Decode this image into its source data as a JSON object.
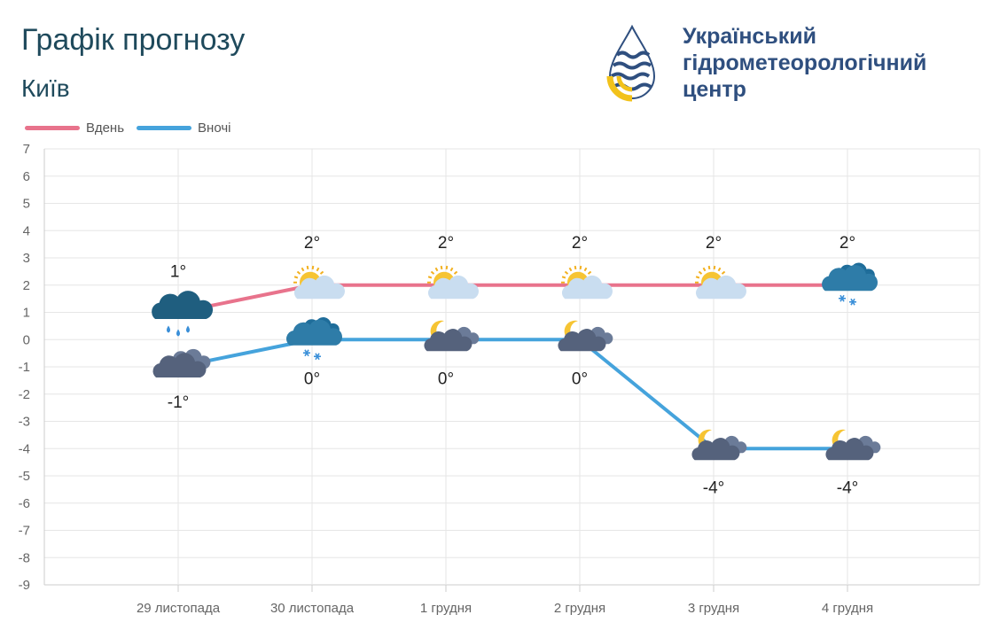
{
  "header": {
    "title": "Графік прогнозу",
    "subtitle": "Київ"
  },
  "org": {
    "line1": "Український",
    "line2": "гідрометеорологічний",
    "line3": "центр"
  },
  "colors": {
    "day": "#e8738c",
    "night": "#45a3dc",
    "grid": "#e6e6e6"
  },
  "chart_data": {
    "type": "line",
    "categories": [
      "29 листопада",
      "30 листопада",
      "1 грудня",
      "2 грудня",
      "3 грудня",
      "4 грудня"
    ],
    "ylim": [
      -9,
      7
    ],
    "yticks": [
      7,
      6,
      5,
      4,
      3,
      2,
      1,
      0,
      -1,
      -2,
      -3,
      -4,
      -5,
      -6,
      -7,
      -8,
      -9
    ],
    "grid": true,
    "legend_position": "top-left",
    "series": [
      {
        "name": "Вдень",
        "values": [
          1,
          2,
          2,
          2,
          2,
          2
        ],
        "labels": [
          "1°",
          "2°",
          "2°",
          "2°",
          "2°",
          "2°"
        ],
        "icons": [
          "rain-cloud-icon",
          "partly-cloudy-sun-icon",
          "partly-cloudy-sun-icon",
          "partly-cloudy-sun-icon",
          "partly-cloudy-sun-icon",
          "snow-cloud-icon"
        ]
      },
      {
        "name": "Вночі",
        "values": [
          -1,
          0,
          0,
          0,
          -4,
          -4
        ],
        "labels": [
          "-1°",
          "0°",
          "0°",
          "0°",
          "-4°",
          "-4°"
        ],
        "icons": [
          "overcast-icon",
          "snow-cloud-icon",
          "cloudy-moon-icon",
          "cloudy-moon-icon",
          "cloudy-moon-icon",
          "cloudy-moon-icon"
        ]
      }
    ]
  }
}
